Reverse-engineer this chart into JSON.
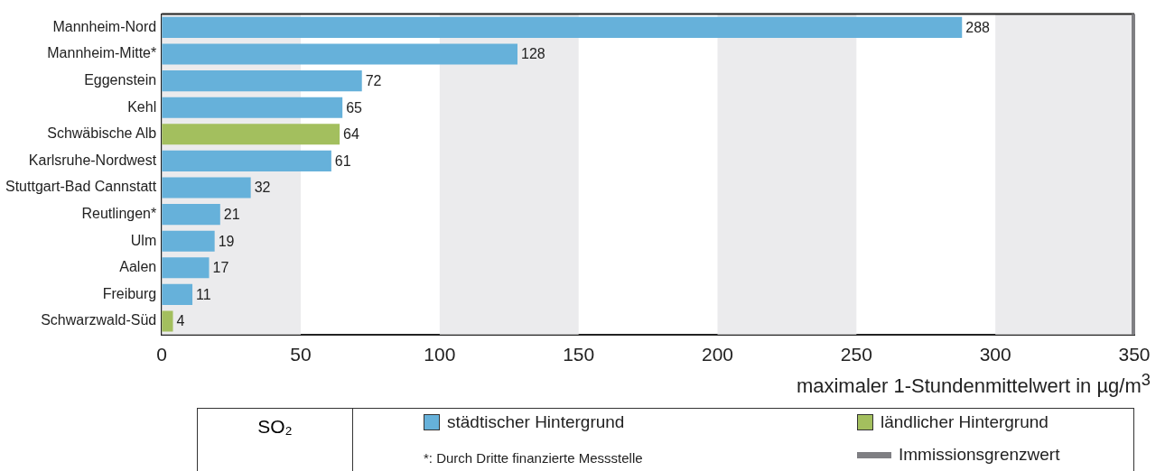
{
  "chart_data": {
    "type": "bar",
    "orientation": "horizontal",
    "categories": [
      "Mannheim-Nord",
      "Mannheim-Mitte*",
      "Eggenstein",
      "Kehl",
      "Schwäbische Alb",
      "Karlsruhe-Nordwest",
      "Stuttgart-Bad Cannstatt",
      "Reutlingen*",
      "Ulm",
      "Aalen",
      "Freiburg",
      "Schwarzwald-Süd"
    ],
    "series": [
      {
        "name": "städtischer Hintergrund",
        "color": "#66b1da",
        "values": [
          288,
          128,
          72,
          65,
          null,
          61,
          32,
          21,
          19,
          17,
          11,
          null
        ]
      },
      {
        "name": "ländlicher Hintergrund",
        "color": "#a3bf5e",
        "values": [
          null,
          null,
          null,
          null,
          64,
          null,
          null,
          null,
          null,
          null,
          null,
          4
        ]
      }
    ],
    "data_labels": true,
    "xlabel": "maximaler 1-Stundenmittelwert in µg/m$^{3}$",
    "xlim": [
      0,
      350
    ],
    "xticks": [
      0,
      50,
      100,
      150,
      200,
      250,
      300,
      350
    ],
    "bands": [
      {
        "axis": "x",
        "from": 0,
        "to": 50,
        "color": "#ebebed"
      },
      {
        "axis": "x",
        "from": 100,
        "to": 150,
        "color": "#ebebed"
      },
      {
        "axis": "x",
        "from": 200,
        "to": 250,
        "color": "#ebebed"
      },
      {
        "axis": "x",
        "from": 300,
        "to": 350,
        "color": "#ebebed"
      }
    ],
    "ref_lines": [
      {
        "axis": "x",
        "value": 350,
        "label": "Immissionsgrenzwert",
        "color": "#7f7f83"
      }
    ],
    "legend": "bottom",
    "legend_title": "SO₂",
    "annotations": [
      "*: Durch Dritte finanzierte Messstelle"
    ]
  }
}
